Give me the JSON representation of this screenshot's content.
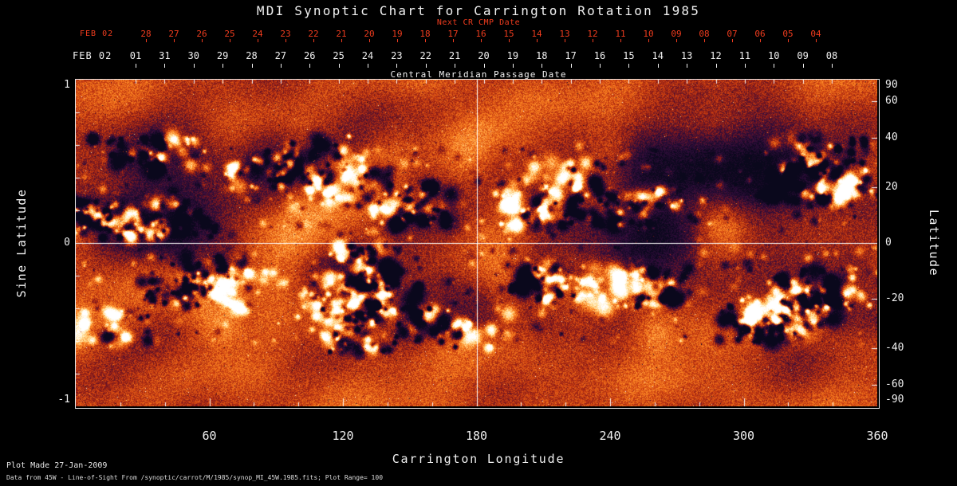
{
  "title": "MDI Synoptic Chart for Carrington Rotation 1985",
  "top_axis_red": {
    "title": "Next CR CMP Date",
    "month_label": "FEB 02",
    "ticks": [
      "28",
      "27",
      "26",
      "25",
      "24",
      "23",
      "22",
      "21",
      "20",
      "19",
      "18",
      "17",
      "16",
      "15",
      "14",
      "13",
      "12",
      "11",
      "10",
      "09",
      "08",
      "07",
      "06",
      "05",
      "04"
    ]
  },
  "top_axis_white": {
    "title": "Central Meridian Passage Date",
    "month_label": "FEB 02",
    "ticks": [
      "01",
      "31",
      "30",
      "29",
      "28",
      "27",
      "26",
      "25",
      "24",
      "23",
      "22",
      "21",
      "20",
      "19",
      "18",
      "17",
      "16",
      "15",
      "14",
      "13",
      "12",
      "11",
      "10",
      "09",
      "08"
    ]
  },
  "left_axis": {
    "label": "Sine Latitude",
    "tick_labels": [
      "1",
      "0",
      "-1"
    ],
    "tick_values": [
      1,
      0,
      -1
    ]
  },
  "right_axis": {
    "label": "Latitude",
    "tick_labels": [
      "90",
      "60",
      "40",
      "20",
      "0",
      "-20",
      "-40",
      "-60",
      "-90"
    ],
    "tick_values": [
      90,
      60,
      40,
      20,
      0,
      -20,
      -40,
      -60,
      -90
    ]
  },
  "bottom_axis": {
    "label": "Carrington Longitude",
    "tick_labels": [
      "60",
      "120",
      "180",
      "240",
      "300",
      "360"
    ],
    "tick_values": [
      60,
      120,
      180,
      240,
      300,
      360
    ]
  },
  "footer": {
    "plot_made": "Plot Made 27-Jan-2009",
    "data_source": "Data from 45W - Line-of-Sight From /synoptic/carrot/M/1985/synop_MI_45W.1985.fits; Plot Range=  100"
  },
  "colors": {
    "background": "#000000",
    "axis_text": "#f0f0f0",
    "red_axis": "#f03c1e",
    "map_quiet_base": "#ce4010",
    "map_positive_polarity": "#ffffff",
    "map_negative_polarity": "#07061c",
    "crosshair": "#ffffff"
  },
  "chart_data": {
    "type": "heatmap",
    "title": "MDI Synoptic Chart for Carrington Rotation 1985",
    "carrington_rotation": 1985,
    "quantity": "line-of-sight photospheric magnetic field (magnetogram synoptic map)",
    "xlabel": "Carrington Longitude",
    "ylabel_left": "Sine Latitude",
    "ylabel_right": "Latitude",
    "x_range": [
      0,
      360
    ],
    "x_major_ticks": [
      60,
      120,
      180,
      240,
      300,
      360
    ],
    "x_minor_tick_step": 20,
    "y_sine_range": [
      -1,
      1
    ],
    "y_left_ticks": [
      1,
      0,
      -1
    ],
    "y_right_latitude_ticks": [
      90,
      60,
      40,
      20,
      0,
      -20,
      -40,
      -60,
      -90
    ],
    "crosshair": {
      "longitude": 180,
      "sine_latitude": 0
    },
    "plot_range_gauss": 100,
    "activity_bands_sine_latitude": [
      [
        0.13,
        0.55
      ],
      [
        -0.55,
        -0.13
      ]
    ],
    "polarity_rendering": {
      "positive": "white / pale yellow patches",
      "negative": "dark blue / black patches",
      "quiet_sun": "orange-red speckled noise"
    },
    "grid": false,
    "legend": "none"
  }
}
